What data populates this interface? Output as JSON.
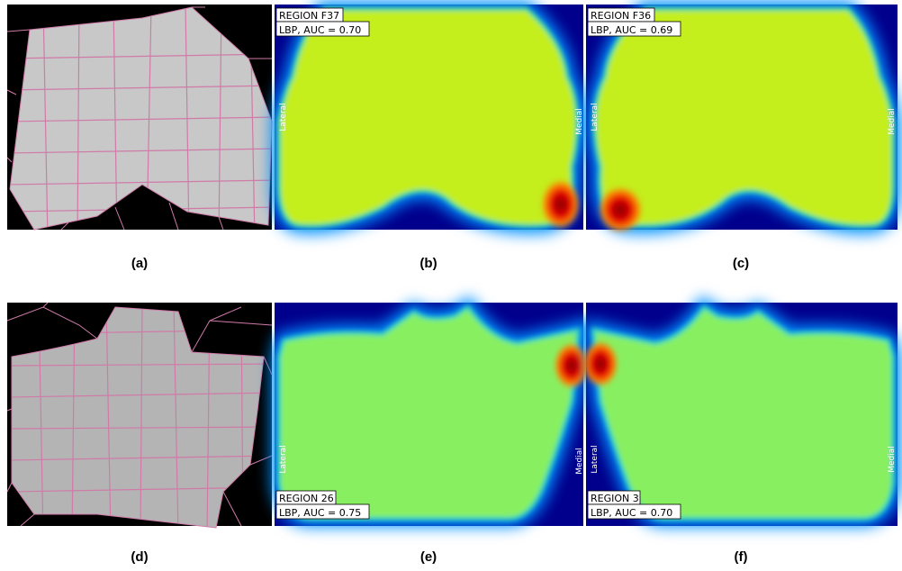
{
  "panels": [
    {
      "caption": "(a)"
    },
    {
      "caption": "(b)",
      "region": "REGION F37",
      "score": "LBP, AUC = 0.70",
      "left": "Lateral",
      "right": "Medial"
    },
    {
      "caption": "(c)",
      "region": "REGION F36",
      "score": "LBP, AUC = 0.69",
      "left": "Lateral",
      "right": "Medial"
    },
    {
      "caption": "(d)"
    },
    {
      "caption": "(e)",
      "region": "REGION 26",
      "score": "LBP, AUC = 0.75",
      "left": "Lateral",
      "right": "Medial"
    },
    {
      "caption": "(f)",
      "region": "REGION 3",
      "score": "LBP, AUC = 0.70",
      "left": "Lateral",
      "right": "Medial"
    }
  ]
}
